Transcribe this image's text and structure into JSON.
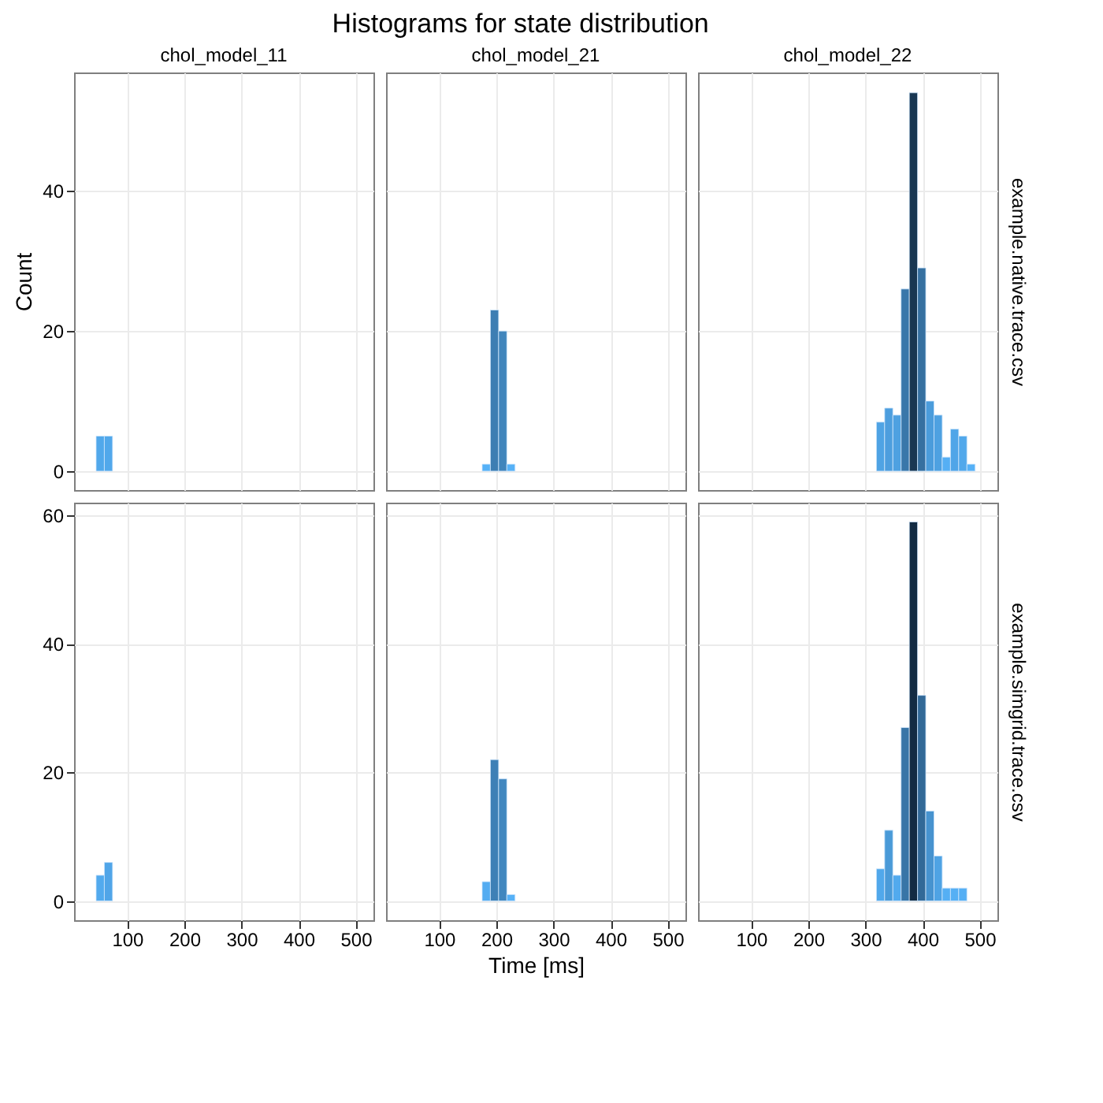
{
  "chart_data": [
    {
      "type": "histogram",
      "title": "chol_model_11",
      "annotations": [
        "Histograms for state distribution"
      ],
      "ylabel": "Count",
      "bins": [
        45.6,
        60.0,
        74.4
      ],
      "values": [
        5,
        5
      ],
      "colors": [
        "#51a8eb",
        "#51a8eb"
      ],
      "xlim": [
        7,
        531
      ],
      "xticks": [
        100,
        200,
        300,
        400,
        500
      ],
      "ylim": [
        -2.7,
        56.9
      ],
      "yticks": [
        0,
        20,
        40
      ],
      "grid": true,
      "tick_labels": "y"
    },
    {
      "type": "histogram",
      "title": "chol_model_21",
      "bins": [
        175.2,
        189.6,
        204.0,
        218.4,
        232.8
      ],
      "values": [
        1,
        23,
        20,
        1
      ],
      "colors": [
        "#56b1f7",
        "#3d7eb3",
        "#4085bc",
        "#56b1f7"
      ],
      "xlim": [
        7,
        531
      ],
      "xticks": [
        100,
        200,
        300,
        400,
        500
      ],
      "ylim": [
        -2.7,
        56.9
      ],
      "yticks": [
        0,
        20,
        40
      ],
      "grid": true,
      "tick_labels": false
    },
    {
      "type": "histogram",
      "title": "chol_model_22",
      "y2label": "example.native.trace.csv",
      "bins": [
        319.2,
        333.6,
        348.0,
        362.4,
        376.8,
        391.2,
        405.6,
        420.0,
        434.4,
        448.8,
        463.2,
        477.6,
        492.0
      ],
      "values": [
        7,
        9,
        8,
        26,
        54,
        29,
        10,
        8,
        2,
        6,
        5,
        1
      ],
      "colors": [
        "#4fa3e4",
        "#4d9ede",
        "#4ea1e1",
        "#3977aa",
        "#193752",
        "#3670a0",
        "#4b9cdb",
        "#4ea1e1",
        "#55aff4",
        "#50a5e8",
        "#51a8eb",
        "#56b1f7"
      ],
      "xlim": [
        7,
        531
      ],
      "xticks": [
        100,
        200,
        300,
        400,
        500
      ],
      "ylim": [
        -2.7,
        56.9
      ],
      "yticks": [
        0,
        20,
        40
      ],
      "grid": true,
      "tick_labels": false
    },
    {
      "type": "histogram",
      "bins": [
        45.6,
        60.0,
        74.4
      ],
      "values": [
        4,
        6
      ],
      "colors": [
        "#52aaee",
        "#50a5e8"
      ],
      "xlim": [
        7,
        531
      ],
      "xticks": [
        100,
        200,
        300,
        400,
        500
      ],
      "ylim": [
        -3,
        62
      ],
      "yticks": [
        0,
        20,
        40,
        60
      ],
      "grid": true
    },
    {
      "type": "histogram",
      "xlabel": "Time [ms]",
      "bins": [
        175.2,
        189.6,
        204.0,
        218.4,
        232.8
      ],
      "values": [
        3,
        22,
        19,
        1
      ],
      "colors": [
        "#54acf1",
        "#3e80b6",
        "#4187bf",
        "#56b1f7"
      ],
      "xlim": [
        7,
        531
      ],
      "xticks": [
        100,
        200,
        300,
        400,
        500
      ],
      "ylim": [
        -3,
        62
      ],
      "yticks": [
        0,
        20,
        40,
        60
      ],
      "grid": true,
      "tick_labels": "x"
    },
    {
      "type": "histogram",
      "y2label": "example.simgrid.trace.csv",
      "bins": [
        319.2,
        333.6,
        348.0,
        362.4,
        376.8,
        391.2,
        405.6,
        420.0,
        434.4,
        448.8,
        463.2,
        477.6
      ],
      "values": [
        5,
        11,
        4,
        27,
        59,
        32,
        14,
        7,
        2,
        2,
        2
      ],
      "colors": [
        "#51a8eb",
        "#4a9ad8",
        "#52aaee",
        "#3875a7",
        "#132b43",
        "#326997",
        "#4793cf",
        "#4fa3e4",
        "#55aff4",
        "#55aff4",
        "#55aff4"
      ],
      "xlim": [
        7,
        531
      ],
      "xticks": [
        100,
        200,
        300,
        400,
        500
      ],
      "ylim": [
        -3,
        62
      ],
      "yticks": [
        0,
        20,
        40,
        60
      ],
      "grid": true,
      "tick_labels": "x"
    }
  ]
}
